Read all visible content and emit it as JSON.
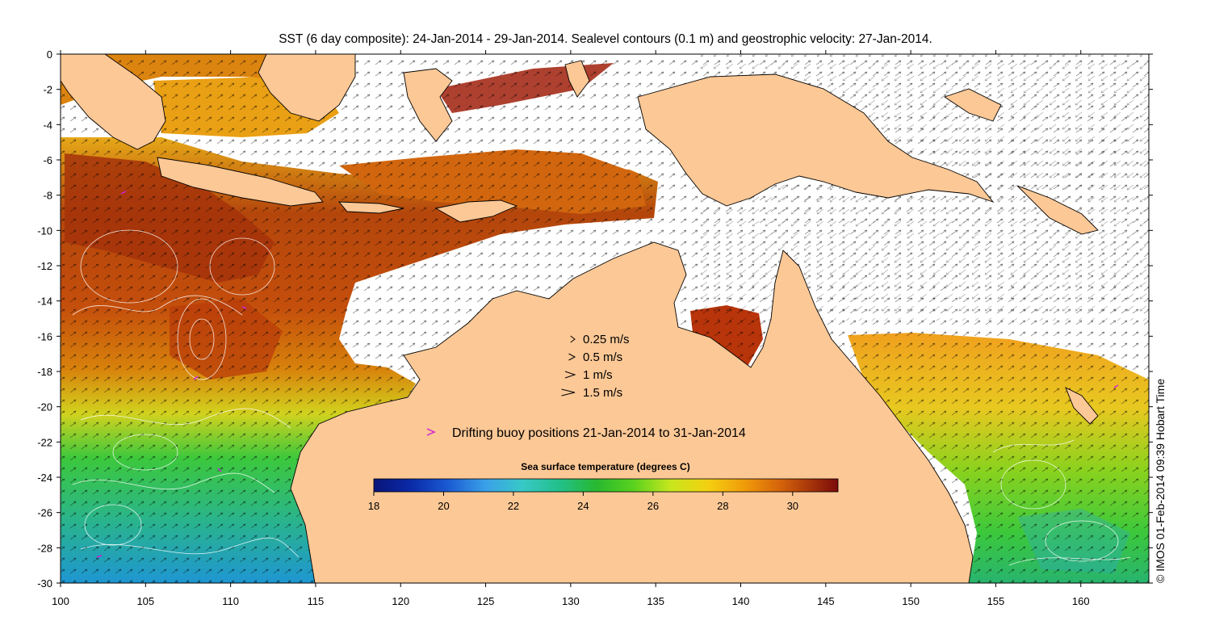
{
  "title": "SST (6 day composite): 24-Jan-2014 - 29-Jan-2014. Sealevel contours (0.1 m) and geostrophic velocity: 27-Jan-2014.",
  "copyright": "© IMOS 01-Feb-2014 09:39 Hobart Time",
  "x_ticks": [
    "100",
    "105",
    "110",
    "115",
    "120",
    "125",
    "130",
    "135",
    "140",
    "145",
    "150",
    "155",
    "160"
  ],
  "y_ticks": [
    "0",
    "-2",
    "-4",
    "-6",
    "-8",
    "-10",
    "-12",
    "-14",
    "-16",
    "-18",
    "-20",
    "-22",
    "-24",
    "-26",
    "-28",
    "-30"
  ],
  "velocity_legend": [
    "0.25 m/s",
    "0.5 m/s",
    "1 m/s",
    "1.5 m/s"
  ],
  "velocity_legend_speeds": [
    0.25,
    0.5,
    1,
    1.5
  ],
  "buoy_legend": "Drifting buoy positions 21-Jan-2014 to 31-Jan-2014",
  "colorbar": {
    "title": "Sea surface temperature (degrees C)",
    "min": 18,
    "max": 31.3,
    "ticks": [
      "18",
      "20",
      "22",
      "24",
      "26",
      "28",
      "30"
    ]
  },
  "colors": {
    "land": "#fcc896",
    "buoy": "#d21fd2",
    "sst_cold": "#0a1478",
    "sst_warm": "#7a0a0a"
  },
  "map_extent": {
    "lon": [
      100,
      164
    ],
    "lat": [
      -30,
      0
    ]
  }
}
